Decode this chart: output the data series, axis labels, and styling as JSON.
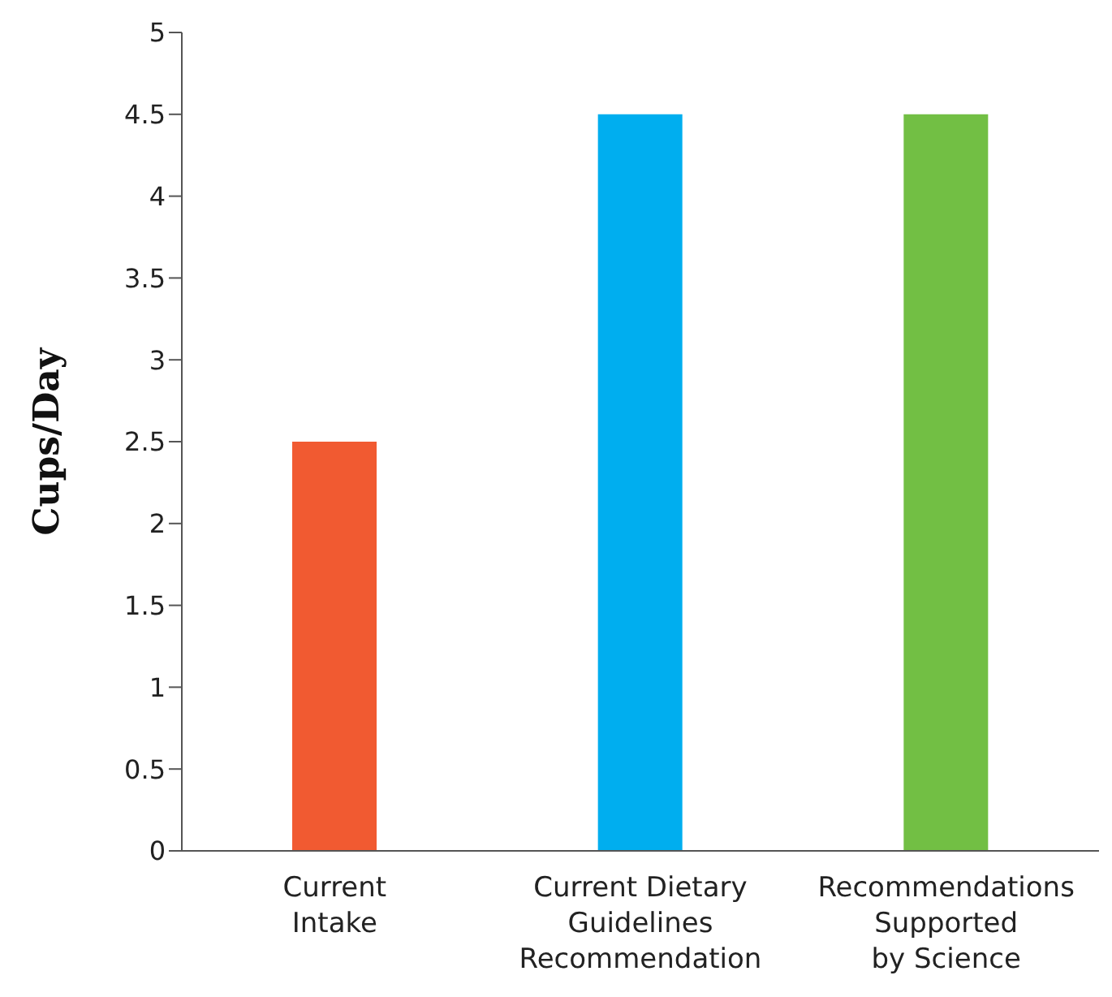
{
  "chart_data": {
    "type": "bar",
    "ylabel": "Cups/Day",
    "categories": [
      "Current\nIntake",
      "Current Dietary\nGuidelines\nRecommendation",
      "Recommendations\nSupported\nby Science"
    ],
    "values": [
      2.5,
      4.5,
      4.5
    ],
    "colors": [
      "#f15a31",
      "#00aeef",
      "#72bf44"
    ],
    "ylim": [
      0,
      5
    ],
    "yticks": [
      0,
      0.5,
      1,
      1.5,
      2,
      2.5,
      3,
      3.5,
      4,
      4.5,
      5
    ],
    "grid": false,
    "legend": false
  }
}
